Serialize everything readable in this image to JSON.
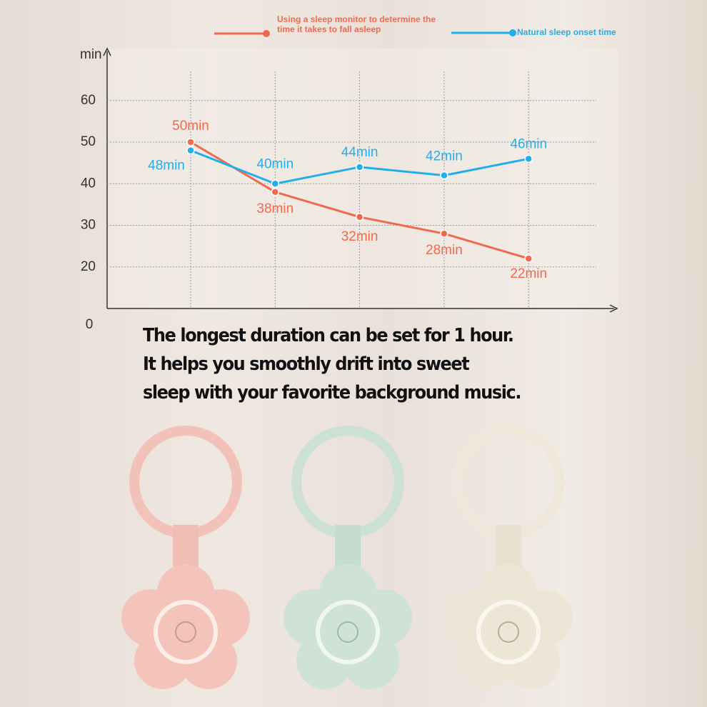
{
  "chart_data": {
    "type": "line",
    "y_label": "min",
    "origin_label": 0,
    "ylim": [
      10,
      67
    ],
    "yticks": [
      20,
      30,
      40,
      50,
      60
    ],
    "grid": true,
    "categories": [
      null,
      null,
      null,
      null,
      null
    ],
    "series": [
      {
        "name": "Using a sleep monitor to determine the time it takes to fall asleep",
        "color": "#f0694f",
        "values": [
          50,
          38,
          32,
          28,
          22
        ],
        "value_labels": [
          "50min",
          "38min",
          "32min",
          "28min",
          "22min"
        ]
      },
      {
        "name": "Natural sleep onset time",
        "color": "#22aee8",
        "values": [
          48,
          40,
          44,
          42,
          46
        ],
        "value_labels": [
          "48min",
          "40min",
          "44min",
          "42min",
          "46min"
        ]
      }
    ],
    "annotations": [
      "The longest duration can be set for 1 hour.",
      "It helps you smoothly drift into sweet",
      "sleep with your favorite background music."
    ]
  }
}
